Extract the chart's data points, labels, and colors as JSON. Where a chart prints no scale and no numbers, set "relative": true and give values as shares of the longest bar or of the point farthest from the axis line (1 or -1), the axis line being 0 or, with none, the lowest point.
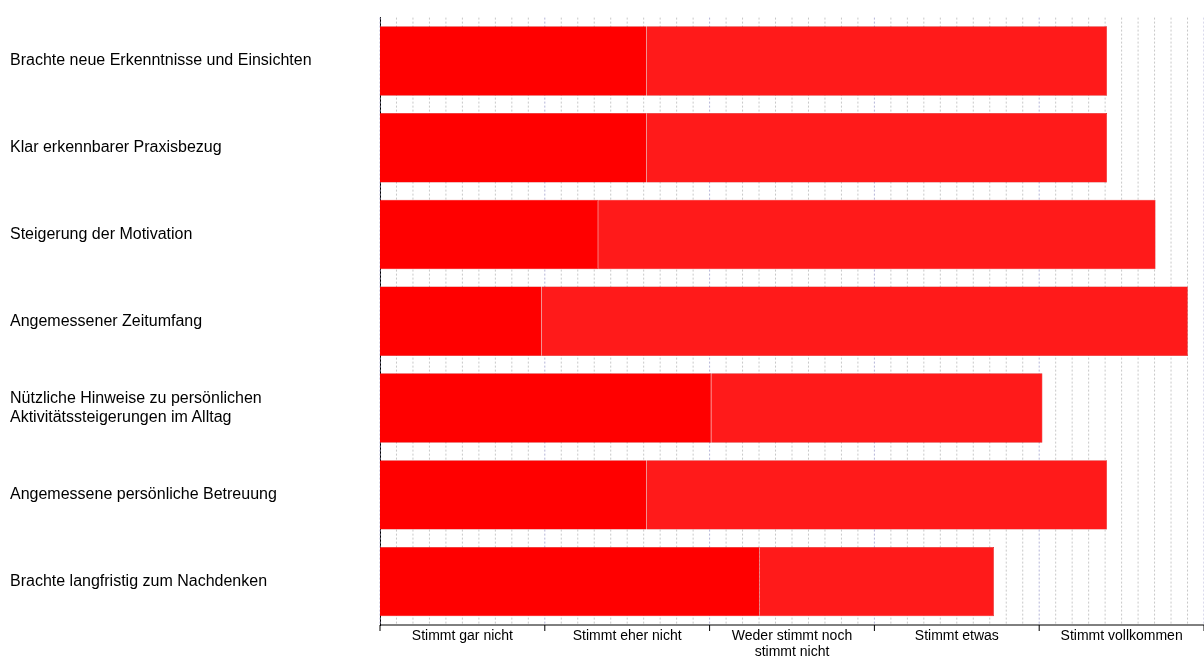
{
  "chart_data": {
    "type": "bar",
    "orientation": "horizontal",
    "stacked": true,
    "relative": true,
    "categories": [
      "Brachte neue Erkenntnisse und Einsichten",
      "Klar erkennbarer Praxisbezug",
      "Steigerung der Motivation",
      "Angemessener Zeitumfang",
      "Nützliche Hinweise zu persönlichen Aktivitätssteigerungen im Alltag",
      "Angemessene persönliche Betreuung",
      "Brachte langfristig zum Nachdenken"
    ],
    "series": [
      {
        "color": "#ff0000",
        "values": [
          0.33,
          0.33,
          0.27,
          0.2,
          0.41,
          0.33,
          0.47
        ]
      },
      {
        "color": "#ff1a1a",
        "values": [
          0.57,
          0.57,
          0.69,
          0.8,
          0.41,
          0.57,
          0.29
        ]
      }
    ],
    "annotations": [
      "Stimmt gar nicht",
      "Stimmt eher nicht",
      "Weder stimmt noch stimmt nicht",
      "Stimmt etwas",
      "Stimmt vollkommen"
    ],
    "grid": "x",
    "legend": false
  }
}
